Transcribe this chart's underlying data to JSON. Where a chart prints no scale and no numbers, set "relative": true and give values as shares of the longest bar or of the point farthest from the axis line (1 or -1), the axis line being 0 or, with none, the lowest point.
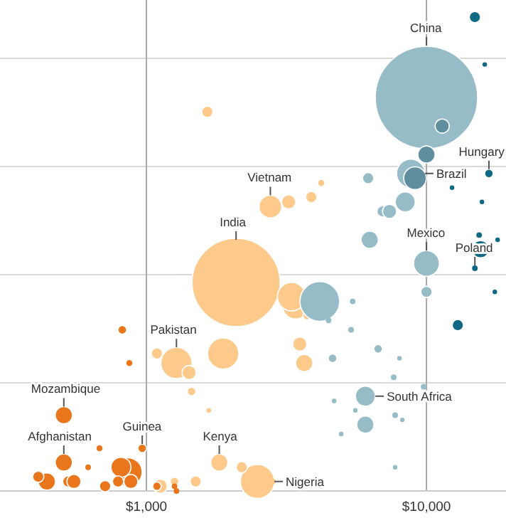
{
  "chart_data": {
    "type": "bubble",
    "relative": true,
    "log": "x",
    "grid": true,
    "xlim": [
      300,
      19230
    ],
    "xticks": [
      {
        "value": 1000,
        "label": "$1,000"
      },
      {
        "value": 10000,
        "label": "$10,000"
      }
    ],
    "series": [
      {
        "color": "#fdca8c",
        "x": [
          2090,
          2490,
          3410,
          1880,
          1280,
          3300,
          1820,
          3660,
          2190,
          3530,
          1420,
          3750,
          1090,
          1450,
          3220,
          3880,
          1650,
          2770,
          4210,
          1670,
          1500,
          1260,
          1120,
          2830
        ],
        "values": [
          0.44,
          0.02,
          0.39,
          0.29,
          0.27,
          0.41,
          0.06,
          0.27,
          0.05,
          0.31,
          0.25,
          0.37,
          0.29,
          0.21,
          0.61,
          0.62,
          0.8,
          0.6,
          0.65,
          0.17,
          0.02,
          0.02,
          0.01,
          0.02
        ],
        "sizes": [
          0.74,
          0.11,
          0.063,
          0.093,
          0.093,
          0.077,
          0.028,
          0.028,
          0.012,
          0.019,
          0.019,
          0.007,
          0.012,
          0.007,
          0.019,
          0.012,
          0.012,
          0.049,
          0.005,
          0.002,
          0.012,
          0.007,
          0.019,
          0.003
        ]
      },
      {
        "color": "#e9761b",
        "x": [
          859,
          811,
          507,
          507,
          441,
          411,
          526,
          551,
          880,
          680,
          619,
          966,
          712,
          792,
          1090,
          1260,
          1280,
          820,
          869
        ],
        "values": [
          0.04,
          0.05,
          0.16,
          0.06,
          0.02,
          0.03,
          0.02,
          0.02,
          0.02,
          0.09,
          0.05,
          0.09,
          0.01,
          0.02,
          0.01,
          0.01,
          0.0,
          0.34,
          0.27
        ],
        "sizes": [
          0.077,
          0.038,
          0.028,
          0.028,
          0.028,
          0.012,
          0.012,
          0.019,
          0.019,
          0.005,
          0.003,
          0.007,
          0.012,
          0.012,
          0.007,
          0.003,
          0.003,
          0.007,
          0.005
        ]
      },
      {
        "color": "#96bcc7",
        "x": [
          10000,
          4160,
          8790,
          10000,
          8400,
          6050,
          6270,
          10000,
          6970,
          7380,
          6190,
          6050,
          9770,
          5450,
          4470,
          5380,
          6720,
          8010,
          4620,
          7640,
          4680,
          5570,
          7730,
          4960,
          8200,
          7730
        ],
        "values": [
          0.83,
          0.4,
          0.67,
          0.48,
          0.61,
          0.2,
          0.53,
          0.42,
          0.59,
          0.59,
          0.66,
          0.14,
          0.22,
          0.4,
          0.36,
          0.34,
          0.3,
          0.28,
          0.28,
          0.24,
          0.19,
          0.17,
          0.16,
          0.12,
          0.15,
          0.05
        ],
        "sizes": [
          1,
          0.15,
          0.077,
          0.063,
          0.038,
          0.038,
          0.028,
          0.012,
          0.012,
          0.019,
          0.012,
          0.028,
          0.003,
          0.003,
          0.003,
          0.003,
          0.007,
          0.002,
          0.007,
          0.003,
          0.002,
          0.002,
          0.003,
          0.002,
          0.002,
          0.002
        ]
      },
      {
        "color": "#5f8f9e",
        "x": [
          9100,
          11380,
          10000
        ],
        "values": [
          0.66,
          0.77,
          0.71
        ],
        "sizes": [
          0.049,
          0.019,
          0.028
        ]
      },
      {
        "color": "#0f6984",
        "x": [
          14890,
          16150,
          16710,
          12340,
          15780,
          15600,
          15420,
          17950,
          12940,
          14890,
          17540
        ],
        "values": [
          1.0,
          0.9,
          0.67,
          0.64,
          0.61,
          0.51,
          0.54,
          0.53,
          0.35,
          0.47,
          0.42
        ],
        "sizes": [
          0.012,
          0.002,
          0.007,
          0.002,
          0.002,
          0.028,
          0.003,
          0.002,
          0.012,
          0.003,
          0.002
        ]
      }
    ],
    "annotations": [
      {
        "text": "China",
        "x": 10000,
        "y": 0.94
      },
      {
        "text": "Brazil",
        "x": 8790,
        "y": 0.67
      },
      {
        "text": "Hungary",
        "x": 16710,
        "y": 0.67
      },
      {
        "text": "Vietnam",
        "x": 2770,
        "y": 0.6
      },
      {
        "text": "India",
        "x": 2090,
        "y": 0.53
      },
      {
        "text": "Mexico",
        "x": 10000,
        "y": 0.48
      },
      {
        "text": "Poland",
        "x": 14890,
        "y": 0.47
      },
      {
        "text": "Pakistan",
        "x": 1280,
        "y": 0.27
      },
      {
        "text": "South Africa",
        "x": 6050,
        "y": 0.2
      },
      {
        "text": "Mozambique",
        "x": 507,
        "y": 0.16
      },
      {
        "text": "Afghanistan",
        "x": 507,
        "y": 0.06
      },
      {
        "text": "Guinea",
        "x": 966,
        "y": 0.09
      },
      {
        "text": "Kenya",
        "x": 1820,
        "y": 0.06
      },
      {
        "text": "Nigeria",
        "x": 2490,
        "y": 0.02
      }
    ]
  }
}
